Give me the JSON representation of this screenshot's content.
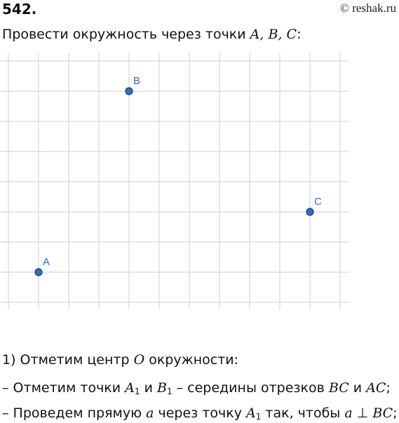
{
  "header": {
    "problem_number": "542.",
    "watermark": "© reshak.ru"
  },
  "task": {
    "prefix": "Провести окружность через точки ",
    "points_list": "A, B, C",
    "suffix": ":"
  },
  "figure": {
    "point_color": "#2f6fbf",
    "points": [
      {
        "label": "A",
        "gx": 1,
        "gy": 1
      },
      {
        "label": "B",
        "gx": 4,
        "gy": 7
      },
      {
        "label": "C",
        "gx": 10,
        "gy": 3
      }
    ]
  },
  "solution": {
    "step1_prefix": "1) Отметим центр ",
    "step1_var": "O",
    "step1_suffix": " окружности:",
    "step2_dash": "– Отметим точки ",
    "step2_A": "A",
    "step2_sub1": "1",
    "step2_and": " и ",
    "step2_B": "B",
    "step2_sub2": "1",
    "step2_mid": " – середины отрезков ",
    "step2_BC": "BC",
    "step2_and2": " и ",
    "step2_AC": "AC",
    "step2_end": ";",
    "step3_dash": "– Проведем прямую ",
    "step3_a": "a",
    "step3_mid": " через точку ",
    "step3_A": "A",
    "step3_sub": "1",
    "step3_mid2": " так, чтобы ",
    "step3_a2": "a",
    "step3_perp": " ⊥ ",
    "step3_BC": "BC",
    "step3_end": ";"
  }
}
